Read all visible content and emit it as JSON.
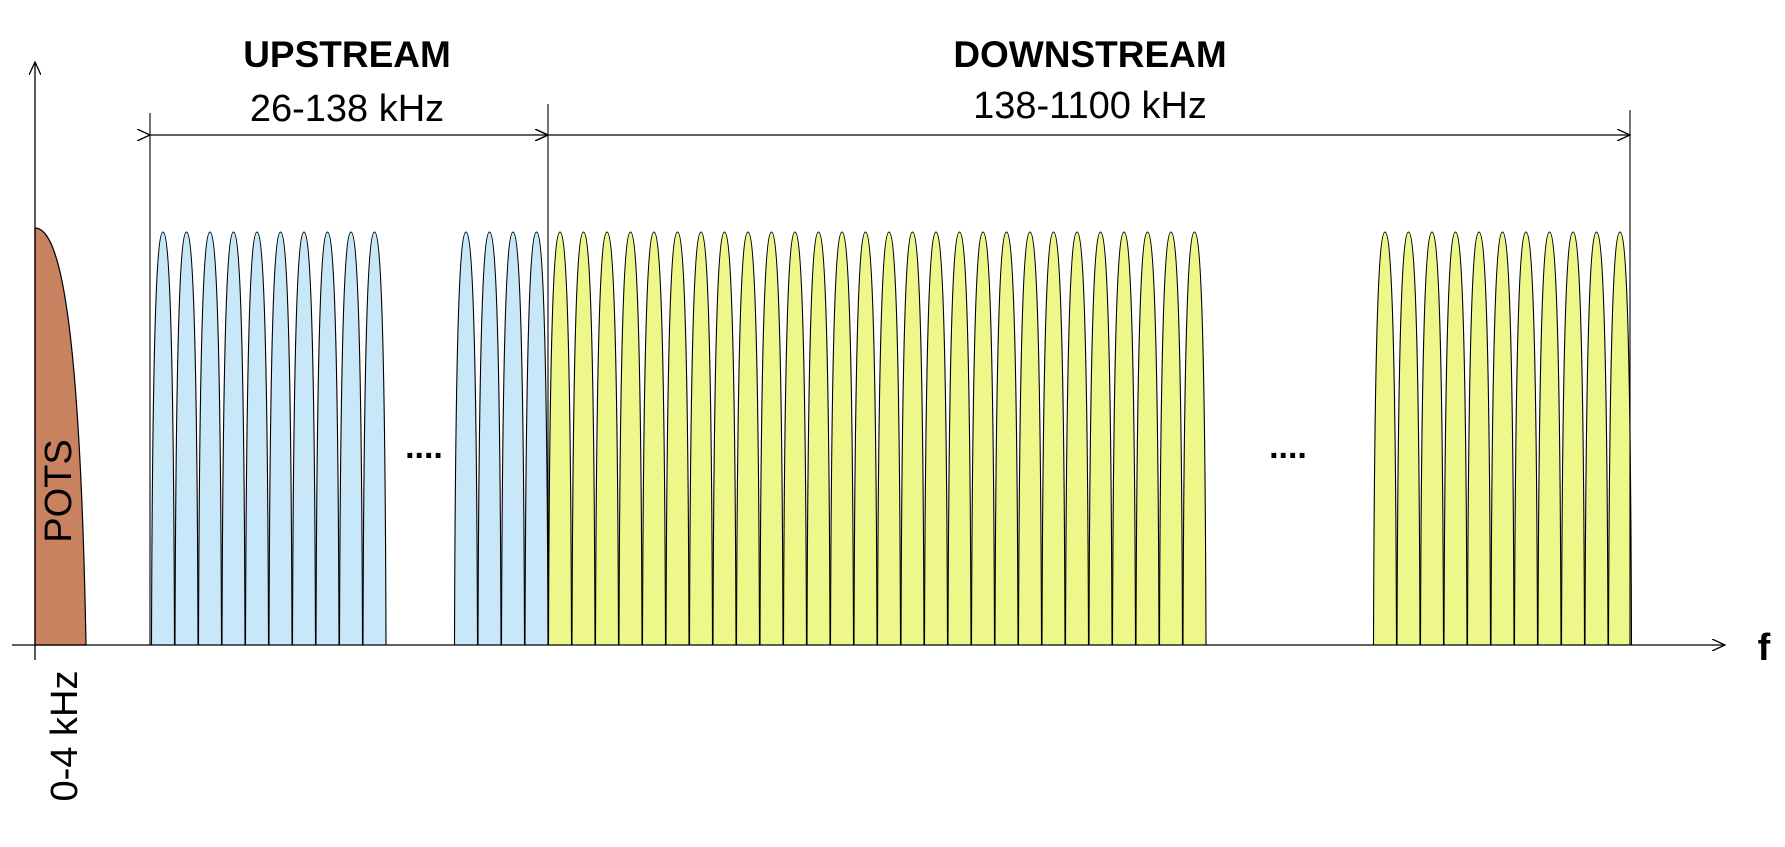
{
  "labels": {
    "upstream_title": "UPSTREAM",
    "upstream_range": "26-138 kHz",
    "downstream_title": "DOWNSTREAM",
    "downstream_range": "138-1100 kHz",
    "pots": "POTS",
    "pots_range": "0-4 kHz",
    "axis_f": "f",
    "ellipsis_upstream": "....",
    "ellipsis_downstream": "...."
  },
  "colors": {
    "pots_fill": "#C8825F",
    "upstream_fill": "#C8E8FA",
    "downstream_fill": "#EEF78A",
    "stroke": "#000000"
  },
  "groups": {
    "upstream_first_count": 10,
    "upstream_second_count": 4,
    "downstream_first_count": 28,
    "downstream_second_count": 11
  }
}
